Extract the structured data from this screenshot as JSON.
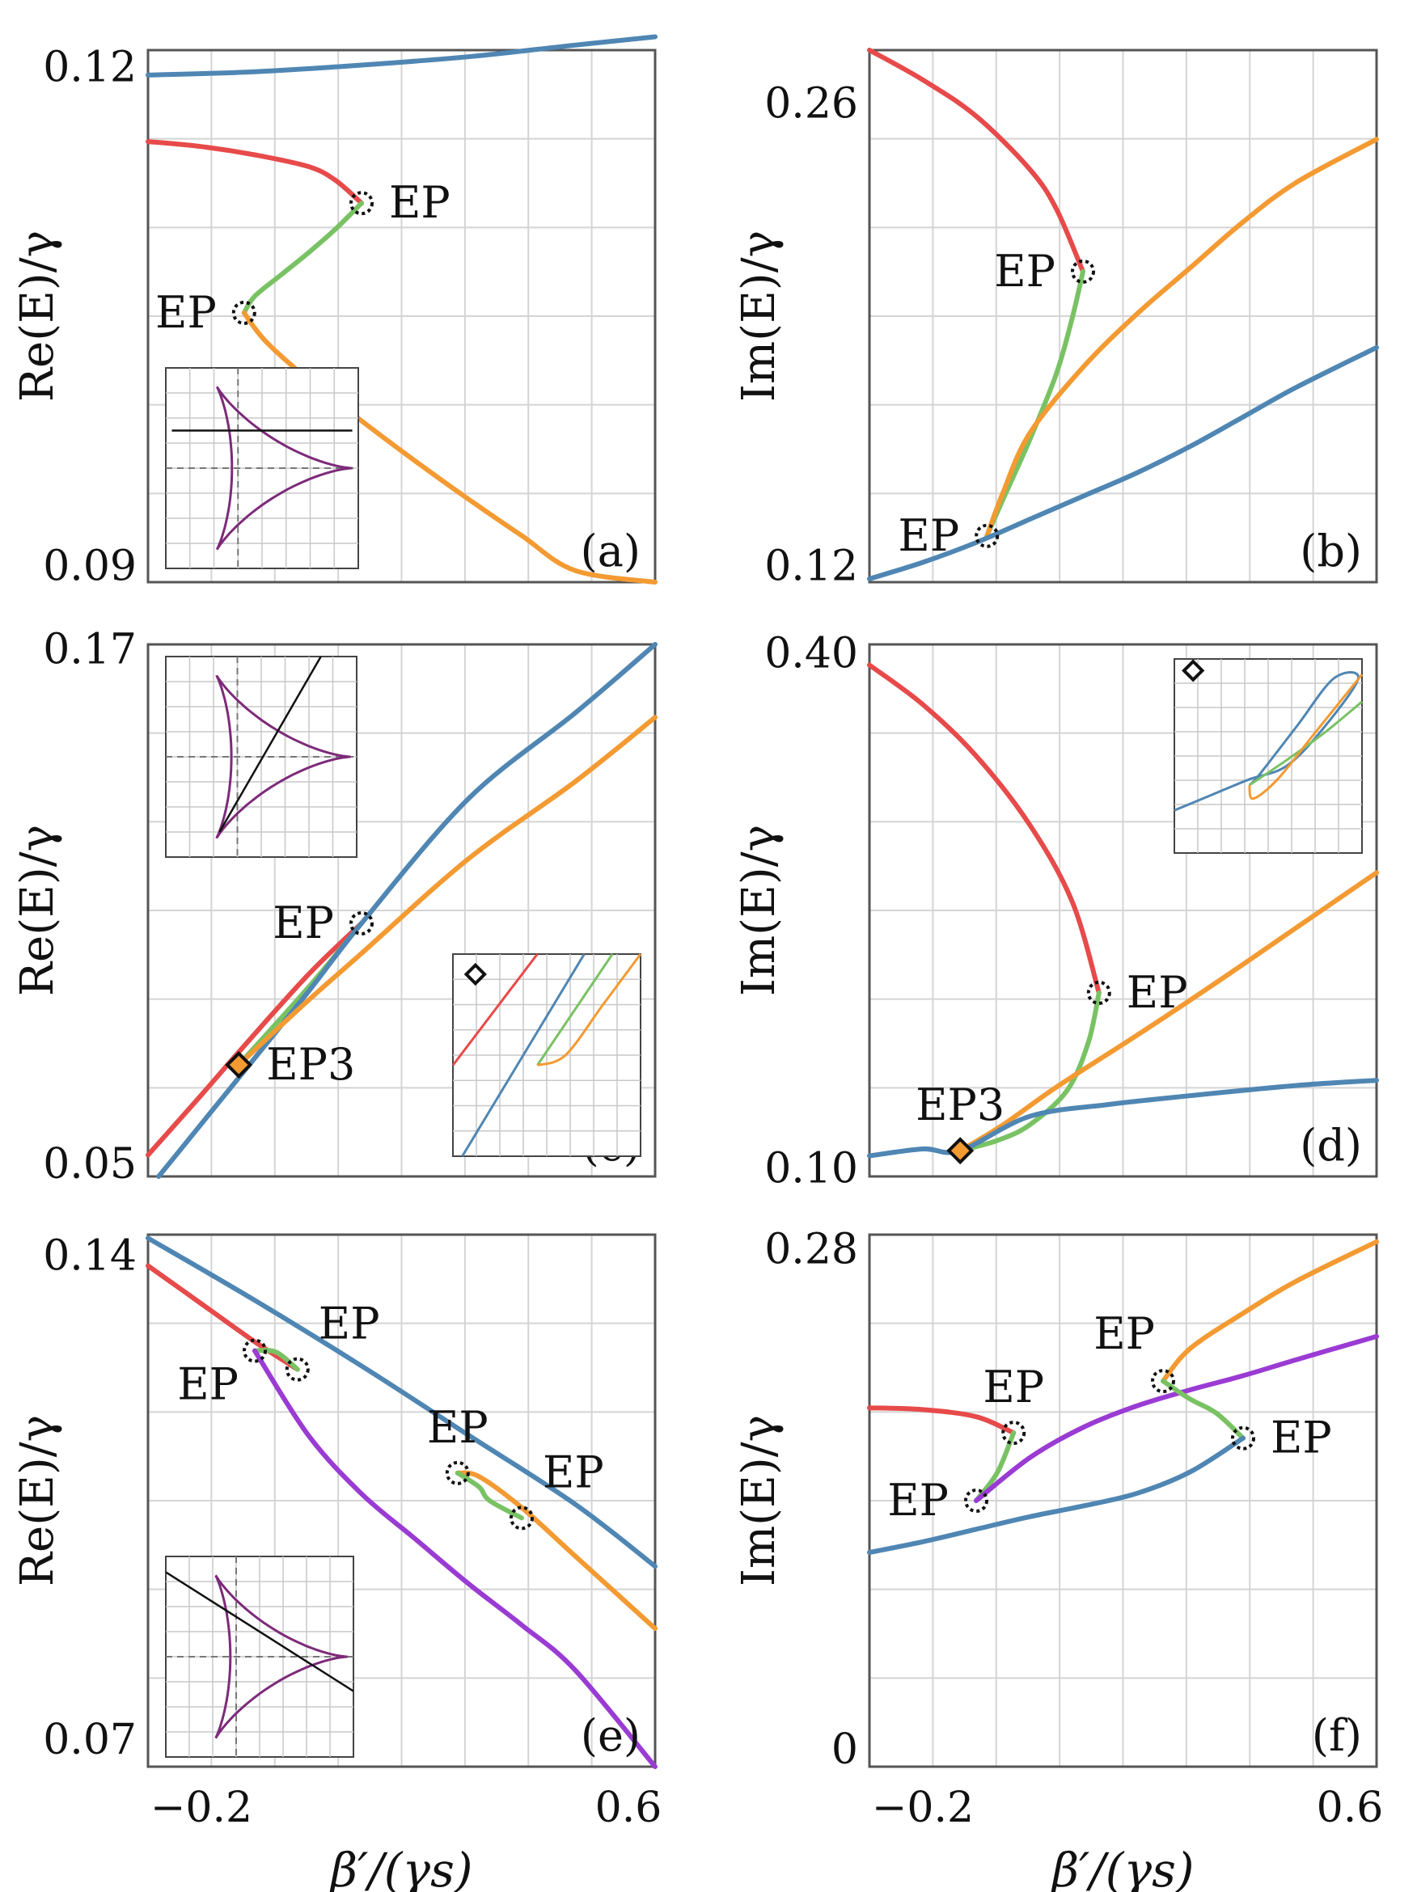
{
  "colors": {
    "blue": "#4f86b3",
    "red": "#e74a4a",
    "green": "#79c264",
    "orange": "#f39a32",
    "purple": "#9a3bd3",
    "astroid": "#7d2a7a"
  },
  "x_axis": {
    "label": "β′/(γs)",
    "ticks": [
      "−0.2",
      "0.6"
    ]
  },
  "chart_data": [
    {
      "id": "a",
      "type": "line",
      "panel_label": "(a)",
      "ylabel": "Re(E)/γ",
      "xlim": [
        -0.3,
        0.65
      ],
      "ylim": [
        0.089,
        0.121
      ],
      "yticks": [
        0.12,
        0.09
      ],
      "ytick_labels": [
        "0.12",
        "0.09"
      ],
      "series": [
        {
          "color": "blue",
          "x": [
            -0.3,
            -0.1,
            0.1,
            0.3,
            0.5,
            0.65
          ],
          "y": [
            0.1195,
            0.1197,
            0.1201,
            0.1206,
            0.1213,
            0.1218
          ]
        },
        {
          "color": "red",
          "x": [
            -0.3,
            -0.2,
            -0.1,
            0.0,
            0.05,
            0.1
          ],
          "y": [
            0.1155,
            0.1152,
            0.1147,
            0.114,
            0.1132,
            0.1118
          ]
        },
        {
          "color": "green",
          "x": [
            0.1,
            0.05,
            0.0,
            -0.05,
            -0.1,
            -0.12
          ],
          "y": [
            0.1118,
            0.1102,
            0.1088,
            0.1075,
            0.1062,
            0.1052
          ]
        },
        {
          "color": "orange",
          "x": [
            -0.12,
            -0.08,
            0.0,
            0.1,
            0.2,
            0.3,
            0.4,
            0.5,
            0.65
          ],
          "y": [
            0.1052,
            0.1035,
            0.1012,
            0.0987,
            0.0963,
            0.094,
            0.0918,
            0.0897,
            0.089
          ]
        }
      ],
      "markers": [
        {
          "type": "EP",
          "x": 0.1,
          "y": 0.1118,
          "label": "EP",
          "label_side": "right"
        },
        {
          "type": "EP",
          "x": -0.12,
          "y": 0.1052,
          "label": "EP",
          "label_side": "left"
        }
      ],
      "inset": {
        "kind": "astroid",
        "line": [
          [
            -1.5,
            0.6
          ],
          [
            1.5,
            0.6
          ]
        ]
      }
    },
    {
      "id": "b",
      "type": "line",
      "panel_label": "(b)",
      "ylabel": "Im(E)/γ",
      "xlim": [
        -0.3,
        0.65
      ],
      "ylim": [
        0.115,
        0.276
      ],
      "yticks": [
        0.26,
        0.12
      ],
      "ytick_labels": [
        "0.26",
        "0.12"
      ],
      "series": [
        {
          "color": "red",
          "x": [
            -0.3,
            -0.2,
            -0.1,
            0.0,
            0.05,
            0.1
          ],
          "y": [
            0.276,
            0.267,
            0.256,
            0.24,
            0.228,
            0.209
          ]
        },
        {
          "color": "green",
          "x": [
            0.1,
            0.08,
            0.05,
            0.0,
            -0.05,
            -0.08
          ],
          "y": [
            0.209,
            0.195,
            0.178,
            0.158,
            0.14,
            0.129
          ]
        },
        {
          "color": "orange",
          "x": [
            -0.08,
            -0.05,
            0.0,
            0.1,
            0.2,
            0.3,
            0.4,
            0.5,
            0.65
          ],
          "y": [
            0.129,
            0.142,
            0.16,
            0.18,
            0.196,
            0.21,
            0.224,
            0.236,
            0.249
          ]
        },
        {
          "color": "blue",
          "x": [
            -0.3,
            -0.2,
            -0.1,
            0.0,
            0.1,
            0.2,
            0.3,
            0.4,
            0.5,
            0.65
          ],
          "y": [
            0.116,
            0.121,
            0.127,
            0.134,
            0.141,
            0.148,
            0.156,
            0.165,
            0.174,
            0.186
          ]
        }
      ],
      "markers": [
        {
          "type": "EP",
          "x": 0.1,
          "y": 0.209,
          "label": "EP",
          "label_side": "left"
        },
        {
          "type": "EP",
          "x": -0.08,
          "y": 0.129,
          "label": "EP",
          "label_side": "left"
        }
      ]
    },
    {
      "id": "c",
      "type": "line",
      "panel_label": "(c)",
      "ylabel": "Re(E)/γ",
      "xlim": [
        -0.3,
        0.65
      ],
      "ylim": [
        0.047,
        0.171
      ],
      "yticks": [
        0.17,
        0.05
      ],
      "ytick_labels": [
        "0.17",
        "0.05"
      ],
      "series": [
        {
          "color": "red",
          "x": [
            -0.3,
            -0.2,
            -0.13,
            0.0,
            0.1
          ],
          "y": [
            0.052,
            0.066,
            0.076,
            0.094,
            0.106
          ]
        },
        {
          "color": "green",
          "x": [
            0.1,
            0.0,
            -0.13
          ],
          "y": [
            0.106,
            0.091,
            0.073
          ]
        },
        {
          "color": "blue",
          "x": [
            -0.28,
            -0.13,
            0.0,
            0.1,
            0.3,
            0.5,
            0.65
          ],
          "y": [
            0.047,
            0.07,
            0.09,
            0.106,
            0.135,
            0.155,
            0.171
          ]
        },
        {
          "color": "orange",
          "x": [
            -0.13,
            0.0,
            0.1,
            0.3,
            0.5,
            0.65
          ],
          "y": [
            0.073,
            0.088,
            0.099,
            0.121,
            0.139,
            0.154
          ]
        }
      ],
      "markers": [
        {
          "type": "EP",
          "x": 0.1,
          "y": 0.106,
          "label": "EP",
          "label_side": "left"
        },
        {
          "type": "EP3",
          "x": -0.13,
          "y": 0.073,
          "label": "EP3",
          "label_side": "right"
        }
      ],
      "inset": {
        "kind": "astroid",
        "line": [
          [
            -0.7,
            -1.2
          ],
          [
            1.0,
            1.6
          ]
        ]
      },
      "inset2": {
        "kind": "zoom"
      }
    },
    {
      "id": "d",
      "type": "line",
      "panel_label": "(d)",
      "ylabel": "Im(E)/γ",
      "xlim": [
        -0.3,
        0.65
      ],
      "ylim": [
        0.095,
        0.405
      ],
      "yticks": [
        0.4,
        0.1
      ],
      "ytick_labels": [
        "0.40",
        "0.10"
      ],
      "series": [
        {
          "color": "red",
          "x": [
            -0.3,
            -0.2,
            -0.1,
            0.0,
            0.08,
            0.13
          ],
          "y": [
            0.393,
            0.37,
            0.34,
            0.3,
            0.255,
            0.202
          ]
        },
        {
          "color": "green",
          "x": [
            0.13,
            0.11,
            0.07,
            0.0,
            -0.06,
            -0.13
          ],
          "y": [
            0.202,
            0.173,
            0.145,
            0.125,
            0.116,
            0.11
          ]
        },
        {
          "color": "orange",
          "x": [
            -0.13,
            -0.05,
            0.05,
            0.2,
            0.35,
            0.5,
            0.65
          ],
          "y": [
            0.11,
            0.125,
            0.147,
            0.177,
            0.208,
            0.24,
            0.272
          ]
        },
        {
          "color": "blue",
          "x": [
            -0.3,
            -0.2,
            -0.13,
            0.0,
            0.15,
            0.3,
            0.5,
            0.65
          ],
          "y": [
            0.107,
            0.111,
            0.11,
            0.13,
            0.137,
            0.142,
            0.148,
            0.151
          ]
        }
      ],
      "markers": [
        {
          "type": "EP",
          "x": 0.13,
          "y": 0.202,
          "label": "EP",
          "label_side": "right"
        },
        {
          "type": "EP3",
          "x": -0.13,
          "y": 0.11,
          "label": "EP3",
          "label_side": "above"
        }
      ],
      "inset": {
        "kind": "zoom-im"
      }
    },
    {
      "id": "e",
      "type": "line",
      "panel_label": "(e)",
      "ylabel": "Re(E)/γ",
      "xlim": [
        -0.3,
        0.65
      ],
      "ylim": [
        0.066,
        0.143
      ],
      "yticks": [
        0.14,
        0.07
      ],
      "ytick_labels": [
        "0.14",
        "0.07"
      ],
      "series": [
        {
          "color": "blue",
          "x": [
            -0.3,
            -0.1,
            0.1,
            0.3,
            0.5,
            0.65
          ],
          "y": [
            0.1425,
            0.1335,
            0.124,
            0.114,
            0.104,
            0.095
          ]
        },
        {
          "color": "red",
          "x": [
            -0.3,
            -0.2,
            -0.1,
            -0.02
          ],
          "y": [
            0.1385,
            0.133,
            0.1275,
            0.1235
          ]
        },
        {
          "color": "green",
          "x": [
            -0.02,
            -0.06,
            -0.1
          ],
          "y": [
            0.1235,
            0.126,
            0.1262
          ]
        },
        {
          "color": "purple",
          "x": [
            -0.1,
            0.0,
            0.1,
            0.2,
            0.3,
            0.4,
            0.5,
            0.65
          ],
          "y": [
            0.1262,
            0.114,
            0.1055,
            0.099,
            0.0925,
            0.0865,
            0.08,
            0.066
          ]
        },
        {
          "color": "orange",
          "x": [
            0.28,
            0.32,
            0.4,
            0.5,
            0.65
          ],
          "y": [
            0.1085,
            0.108,
            0.1035,
            0.0965,
            0.086
          ]
        },
        {
          "color": "green",
          "x": [
            0.28,
            0.32,
            0.34,
            0.4
          ],
          "y": [
            0.1085,
            0.1065,
            0.1045,
            0.102
          ]
        }
      ],
      "markers": [
        {
          "type": "EP",
          "x": -0.1,
          "y": 0.1262,
          "label": "EP",
          "label_side": "below-left"
        },
        {
          "type": "EP",
          "x": -0.02,
          "y": 0.1235,
          "label": "EP",
          "label_side": "above-right"
        },
        {
          "type": "EP",
          "x": 0.28,
          "y": 0.1085,
          "label": "EP",
          "label_side": "above"
        },
        {
          "type": "EP",
          "x": 0.4,
          "y": 0.102,
          "label": "EP",
          "label_side": "above-right"
        }
      ],
      "inset": {
        "kind": "astroid",
        "line": [
          [
            -1.6,
            1.35
          ],
          [
            1.6,
            -0.55
          ]
        ]
      }
    },
    {
      "id": "f",
      "type": "line",
      "panel_label": "(f)",
      "ylabel": "Im(E)/γ",
      "xlim": [
        -0.3,
        0.65
      ],
      "ylim": [
        -0.01,
        0.288
      ],
      "yticks": [
        0.28,
        0.0
      ],
      "ytick_labels": [
        "0.28",
        "0"
      ],
      "series": [
        {
          "color": "red",
          "x": [
            -0.3,
            -0.2,
            -0.1,
            -0.03
          ],
          "y": [
            0.191,
            0.19,
            0.186,
            0.177
          ]
        },
        {
          "color": "green",
          "x": [
            -0.03,
            -0.06,
            -0.1
          ],
          "y": [
            0.177,
            0.155,
            0.139
          ]
        },
        {
          "color": "purple",
          "x": [
            -0.1,
            0.0,
            0.1,
            0.2,
            0.3,
            0.4,
            0.5,
            0.65
          ],
          "y": [
            0.139,
            0.163,
            0.18,
            0.192,
            0.201,
            0.209,
            0.218,
            0.231
          ]
        },
        {
          "color": "orange",
          "x": [
            0.25,
            0.3,
            0.4,
            0.5,
            0.65
          ],
          "y": [
            0.206,
            0.224,
            0.244,
            0.262,
            0.284
          ]
        },
        {
          "color": "green",
          "x": [
            0.25,
            0.3,
            0.35,
            0.4
          ],
          "y": [
            0.206,
            0.196,
            0.188,
            0.174
          ]
        },
        {
          "color": "blue",
          "x": [
            -0.3,
            -0.2,
            -0.1,
            0.0,
            0.1,
            0.2,
            0.3,
            0.4
          ],
          "y": [
            0.11,
            0.116,
            0.123,
            0.13,
            0.136,
            0.143,
            0.155,
            0.174
          ]
        }
      ],
      "markers": [
        {
          "type": "EP",
          "x": -0.03,
          "y": 0.177,
          "label": "EP",
          "label_side": "above"
        },
        {
          "type": "EP",
          "x": -0.1,
          "y": 0.139,
          "label": "EP",
          "label_side": "left"
        },
        {
          "type": "EP",
          "x": 0.25,
          "y": 0.206,
          "label": "EP",
          "label_side": "above-left"
        },
        {
          "type": "EP",
          "x": 0.4,
          "y": 0.174,
          "label": "EP",
          "label_side": "right"
        }
      ]
    }
  ]
}
